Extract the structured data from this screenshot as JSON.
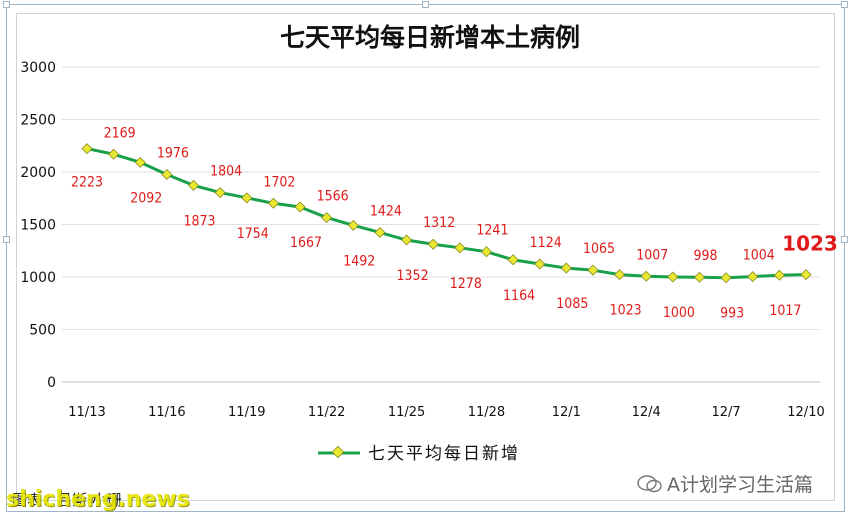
{
  "chart_data": {
    "type": "line",
    "title": "七天平均每日新增本土病例",
    "x": [
      "11/13",
      "11/14",
      "11/15",
      "11/16",
      "11/17",
      "11/18",
      "11/19",
      "11/20",
      "11/21",
      "11/22",
      "11/23",
      "11/24",
      "11/25",
      "11/26",
      "11/27",
      "11/28",
      "11/29",
      "11/30",
      "12/1",
      "12/2",
      "12/3",
      "12/4",
      "12/5",
      "12/6",
      "12/7",
      "12/8",
      "12/9",
      "12/10"
    ],
    "x_tick_labels": [
      "11/13",
      "11/16",
      "11/19",
      "11/22",
      "11/25",
      "11/28",
      "12/1",
      "12/4",
      "12/7",
      "12/10"
    ],
    "series": [
      {
        "name": "七天平均每日新增",
        "values": [
          2223,
          2169,
          2092,
          1976,
          1873,
          1804,
          1754,
          1702,
          1667,
          1566,
          1492,
          1424,
          1352,
          1312,
          1278,
          1241,
          1164,
          1124,
          1085,
          1065,
          1023,
          1007,
          1000,
          998,
          993,
          1004,
          1017,
          1023
        ],
        "color": "#18a04a",
        "marker_color": "#e8e830"
      }
    ],
    "ylim": [
      0,
      3000
    ],
    "yticks": [
      0,
      500,
      1000,
      1500,
      2000,
      2500,
      3000
    ],
    "grid": true,
    "legend": "bottom-center",
    "label_color": "#e01a1a"
  },
  "footer": {
    "credit": "图表：吕斯·小珊",
    "watermark_left": "shicheng.news",
    "watermark_right": "A计划学习生活篇"
  }
}
